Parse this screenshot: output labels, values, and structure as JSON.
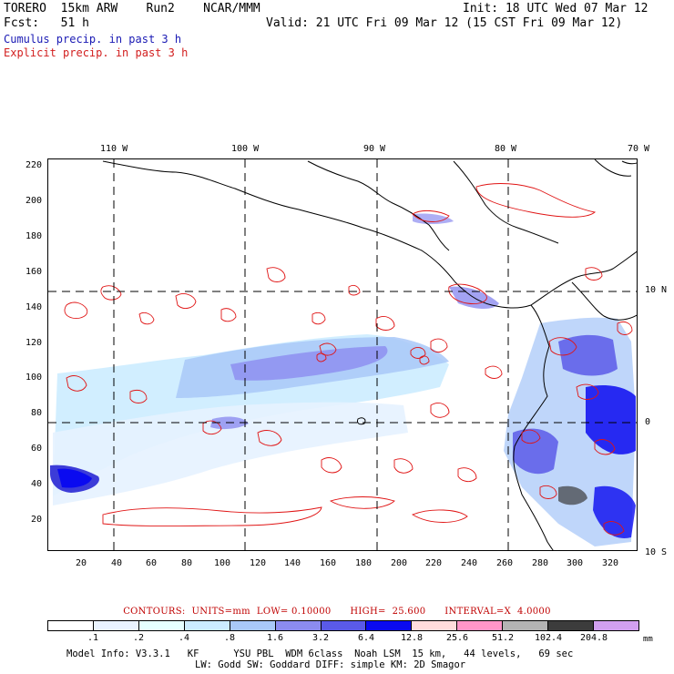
{
  "header": {
    "model": "TORERO  15km ARW    Run2    NCAR/MMM",
    "init": "Init: 18 UTC Wed 07 Mar 12",
    "fcst_label": "Fcst:   51 h",
    "valid": "Valid: 21 UTC Fri 09 Mar 12 (15 CST Fri 09 Mar 12)",
    "cumulus": "Cumulus precip. in past 3 h",
    "explicit": "Explicit precip. in past 3 h"
  },
  "map": {
    "lon_labels": [
      "110 W",
      "100 W",
      "90 W",
      "80 W",
      "70 W"
    ],
    "lat_labels": [
      "10 N",
      "0",
      "10 S"
    ],
    "y_ticks": [
      "220",
      "200",
      "180",
      "160",
      "140",
      "120",
      "100",
      "80",
      "60",
      "40",
      "20"
    ],
    "x_ticks": [
      "20",
      "40",
      "60",
      "80",
      "100",
      "120",
      "140",
      "160",
      "180",
      "200",
      "220",
      "240",
      "260",
      "280",
      "300",
      "320"
    ]
  },
  "contour_info": "CONTOURS:  UNITS=mm  LOW= 0.10000      HIGH=  25.600      INTERVAL=X  4.0000",
  "colorbar": {
    "labels": [
      ".1",
      ".2",
      ".4",
      ".8",
      "1.6",
      "3.2",
      "6.4",
      "12.8",
      "25.6",
      "51.2",
      "102.4",
      "204.8"
    ],
    "unit": "mm",
    "colors": [
      "#ffffff",
      "#eaf3ff",
      "#e6ffff",
      "#ccecff",
      "#a9c8f8",
      "#8c8cf0",
      "#5a5ae8",
      "#0a0af0",
      "#ffdcdc",
      "#ff96c8",
      "#b4b4b4",
      "#3c3c3c",
      "#d2a0f0"
    ]
  },
  "footer": {
    "line1": "Model Info: V3.3.1   KF      YSU PBL  WDM 6class  Noah LSM  15 km,   44 levels,   69 sec",
    "line2": "LW: Godd SW: Goddard DIFF: simple KM: 2D Smagor"
  },
  "colors": {
    "grid": "#000000",
    "explicit_contour": "#e01414",
    "cumulus_text": "#1a1ab4",
    "explicit_text": "#d21e1e"
  }
}
